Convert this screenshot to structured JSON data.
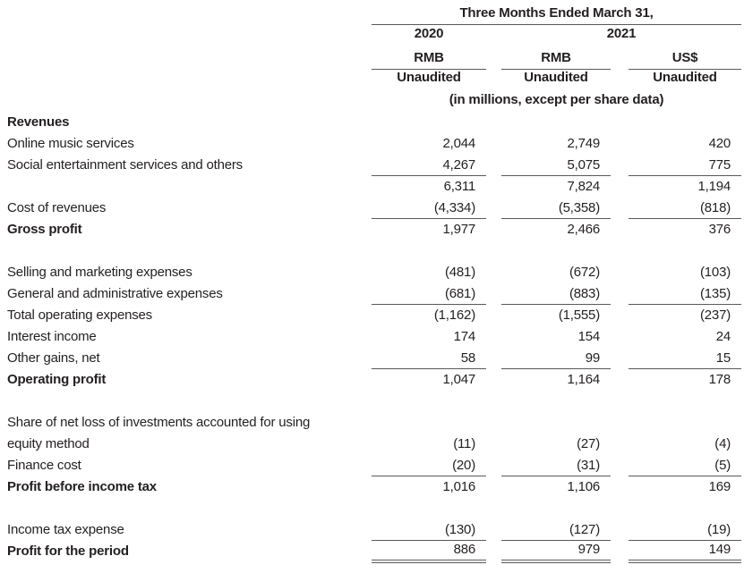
{
  "theme": {
    "text_color": "#231f20",
    "rule_color": "#58595b",
    "background_color": "#ffffff"
  },
  "header": {
    "period_title": "Three Months Ended March 31,",
    "year_left": "2020",
    "year_right": "2021",
    "currency_col1": "RMB",
    "currency_col2": "RMB",
    "currency_col3": "US$",
    "audit_col1": "Unaudited",
    "audit_col2": "Unaudited",
    "audit_col3": "Unaudited",
    "units_note": "(in millions, except per share data)"
  },
  "rows": [
    {
      "label": "Revenues",
      "bold": true,
      "v1": "",
      "v2": "",
      "v3": ""
    },
    {
      "label": "Online music services",
      "v1": "2,044",
      "v2": "2,749",
      "v3": "420"
    },
    {
      "label": "Social entertainment services and others",
      "v1": "4,267",
      "v2": "5,075",
      "v3": "775",
      "rule": "single"
    },
    {
      "label": "",
      "v1": "6,311",
      "v2": "7,824",
      "v3": "1,194"
    },
    {
      "label": "Cost of revenues",
      "v1": "(4,334)",
      "v2": "(5,358)",
      "v3": "(818)",
      "rule": "single"
    },
    {
      "label": "Gross profit",
      "bold": true,
      "v1": "1,977",
      "v2": "2,466",
      "v3": "376"
    },
    {
      "spacer": true
    },
    {
      "label": "Selling and marketing expenses",
      "v1": "(481)",
      "v2": "(672)",
      "v3": "(103)"
    },
    {
      "label": "General and administrative expenses",
      "v1": "(681)",
      "v2": "(883)",
      "v3": "(135)",
      "rule": "single"
    },
    {
      "label": "Total operating expenses",
      "v1": "(1,162)",
      "v2": "(1,555)",
      "v3": "(237)"
    },
    {
      "label": "Interest income",
      "v1": "174",
      "v2": "154",
      "v3": "24"
    },
    {
      "label": "Other gains, net",
      "v1": "58",
      "v2": "99",
      "v3": "15",
      "rule": "single"
    },
    {
      "label": "Operating profit",
      "bold": true,
      "v1": "1,047",
      "v2": "1,164",
      "v3": "178"
    },
    {
      "spacer": true
    },
    {
      "label": "Share of net loss of investments accounted for using",
      "v1": "",
      "v2": "",
      "v3": ""
    },
    {
      "label": "equity method",
      "v1": "(11)",
      "v2": "(27)",
      "v3": "(4)"
    },
    {
      "label": "Finance cost",
      "v1": "(20)",
      "v2": "(31)",
      "v3": "(5)",
      "rule": "single"
    },
    {
      "label": "Profit before income tax",
      "bold": true,
      "v1": "1,016",
      "v2": "1,106",
      "v3": "169"
    },
    {
      "spacer": true
    },
    {
      "label": "Income tax expense",
      "v1": "(130)",
      "v2": "(127)",
      "v3": "(19)",
      "rule": "single"
    },
    {
      "label": "Profit for the period",
      "bold": true,
      "v1": "886",
      "v2": "979",
      "v3": "149",
      "rule": "double"
    }
  ]
}
